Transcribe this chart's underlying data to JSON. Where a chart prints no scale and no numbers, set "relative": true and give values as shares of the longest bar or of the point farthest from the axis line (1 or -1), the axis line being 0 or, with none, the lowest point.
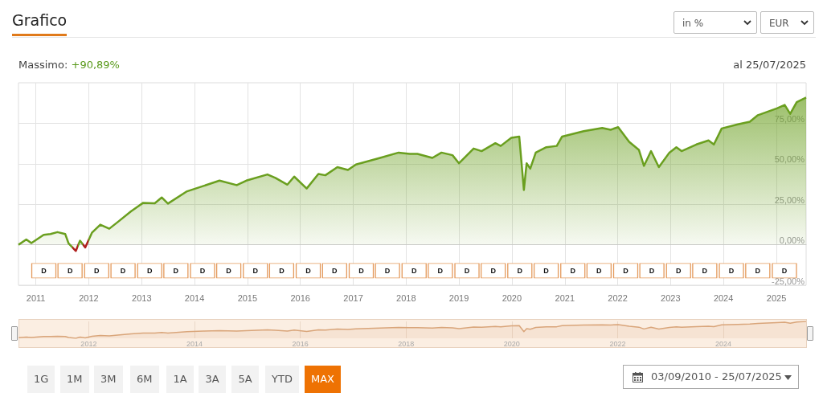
{
  "chart_data": [
    {
      "type": "area",
      "title": "Grafico",
      "x": [
        "2010-09-03",
        "2010-10-27",
        "2010-12-01",
        "2011-02-24",
        "2011-04-12",
        "2011-05-30",
        "2011-07-23",
        "2011-08-15",
        "2011-10-04",
        "2011-11-02",
        "2011-12-08",
        "2012-01-23",
        "2012-03-21",
        "2012-05-22",
        "2012-07-19",
        "2012-10-19",
        "2013-01-11",
        "2013-04-01",
        "2013-05-19",
        "2013-07-01",
        "2013-11-10",
        "2014-03-04",
        "2014-06-22",
        "2014-10-19",
        "2014-12-24",
        "2015-05-19",
        "2015-07-13",
        "2015-10-04",
        "2015-11-20",
        "2016-02-14",
        "2016-05-05",
        "2016-06-22",
        "2016-09-13",
        "2016-11-25",
        "2017-01-19",
        "2017-07-05",
        "2017-11-10",
        "2018-01-26",
        "2018-03-20",
        "2018-07-01",
        "2018-09-02",
        "2018-11-17",
        "2019-01-01",
        "2019-04-12",
        "2019-06-06",
        "2019-09-09",
        "2019-10-16",
        "2019-12-28",
        "2020-02-21",
        "2020-03-24",
        "2020-04-12",
        "2020-05-07",
        "2020-06-14",
        "2020-08-26",
        "2020-11-06",
        "2020-12-13",
        "2021-05-11",
        "2021-09-16",
        "2021-11-13",
        "2022-01-04",
        "2022-03-21",
        "2022-05-27",
        "2022-07-01",
        "2022-08-19",
        "2022-10-12",
        "2022-12-24",
        "2023-02-10",
        "2023-03-18",
        "2023-06-28",
        "2023-09-20",
        "2023-10-27",
        "2023-12-20",
        "2024-04-09",
        "2024-07-01",
        "2024-08-26",
        "2025-01-04",
        "2025-02-27",
        "2025-04-06",
        "2025-05-21",
        "2025-07-25"
      ],
      "series": [
        {
          "color": "#6a9f1f",
          "values": [
            0,
            3.3,
            1,
            6.1,
            6.6,
            7.8,
            6.6,
            0.8,
            -3.8,
            2.5,
            -1.7,
            7.4,
            12.4,
            9.9,
            14,
            20.6,
            25.9,
            25.6,
            29.2,
            25.4,
            33,
            36.3,
            39.6,
            36.8,
            39.6,
            43.4,
            41.3,
            37.1,
            42.1,
            34.7,
            43.7,
            42.9,
            47.9,
            46.2,
            49.5,
            53.6,
            56.9,
            56.1,
            56.1,
            53.6,
            56.9,
            55.3,
            50.3,
            59.4,
            57.8,
            62.7,
            61,
            66,
            66.8,
            33.8,
            50.3,
            47,
            56.9,
            60.2,
            61,
            66.8,
            70.1,
            72.1,
            71,
            72.6,
            63.5,
            58.6,
            48.7,
            57.8,
            47.9,
            56.9,
            60.2,
            57.8,
            61.9,
            64.4,
            61.9,
            71.8,
            74.3,
            75.9,
            80,
            84.2,
            86.3,
            80.8,
            88,
            90.9
          ],
          "colors": [
            "#6a9f1f",
            "#6a9f1f",
            "#6a9f1f",
            "#6a9f1f",
            "#6a9f1f",
            "#6a9f1f",
            "#6a9f1f",
            "#6a9f1f",
            "#b0201e",
            "#6a9f1f",
            "#b0201e",
            "#6a9f1f",
            "#6a9f1f",
            "#6a9f1f",
            "#6a9f1f",
            "#6a9f1f",
            "#6a9f1f",
            "#6a9f1f",
            "#6a9f1f",
            "#6a9f1f",
            "#6a9f1f",
            "#6a9f1f",
            "#6a9f1f",
            "#6a9f1f",
            "#6a9f1f",
            "#6a9f1f",
            "#6a9f1f",
            "#6a9f1f",
            "#6a9f1f",
            "#6a9f1f",
            "#6a9f1f",
            "#6a9f1f",
            "#6a9f1f",
            "#6a9f1f",
            "#6a9f1f",
            "#6a9f1f",
            "#6a9f1f",
            "#6a9f1f",
            "#6a9f1f",
            "#6a9f1f",
            "#6a9f1f",
            "#6a9f1f",
            "#6a9f1f",
            "#6a9f1f",
            "#6a9f1f",
            "#6a9f1f",
            "#6a9f1f",
            "#6a9f1f",
            "#6a9f1f",
            "#6a9f1f",
            "#6a9f1f",
            "#6a9f1f",
            "#6a9f1f",
            "#6a9f1f",
            "#6a9f1f",
            "#6a9f1f",
            "#6a9f1f",
            "#6a9f1f",
            "#6a9f1f",
            "#6a9f1f",
            "#6a9f1f",
            "#6a9f1f",
            "#6a9f1f",
            "#6a9f1f",
            "#6a9f1f",
            "#6a9f1f",
            "#6a9f1f",
            "#6a9f1f",
            "#6a9f1f",
            "#6a9f1f",
            "#6a9f1f",
            "#6a9f1f",
            "#6a9f1f",
            "#6a9f1f",
            "#6a9f1f",
            "#6a9f1f",
            "#6a9f1f",
            "#6a9f1f",
            "#6a9f1f",
            "#6a9f1f"
          ]
        }
      ],
      "xlim": [
        "2010-09-03",
        "2025-07-25"
      ],
      "xticks": [
        "2011",
        "2012",
        "2013",
        "2014",
        "2015",
        "2016",
        "2017",
        "2018",
        "2019",
        "2020",
        "2021",
        "2022",
        "2023",
        "2024",
        "2025"
      ],
      "ylim": [
        -25,
        100
      ],
      "yticks": [
        {
          "value": -25,
          "label": "-25,00%"
        },
        {
          "value": 0,
          "label": "0,00%"
        },
        {
          "value": 25,
          "label": "25,00%"
        },
        {
          "value": 50,
          "label": "50,00%"
        },
        {
          "value": 75,
          "label": "75,00%"
        }
      ],
      "grid": true,
      "marker": "none",
      "line_style": "solid",
      "annotations": [
        "Massimo: +90,89%",
        "al 25/07/2025",
        "in %",
        "EUR",
        "1G",
        "1M",
        "3M",
        "6M",
        "1A",
        "3A",
        "5A",
        "YTD",
        "MAX",
        "03/09/2010 - 25/07/2025",
        {
          "text": "D",
          "x": "2011-02-25",
          "y": -16
        },
        {
          "text": "D",
          "x": "2011-08-25",
          "y": -16
        },
        {
          "text": "D",
          "x": "2012-02-25",
          "y": -16
        },
        {
          "text": "D",
          "x": "2012-08-25",
          "y": -16
        },
        {
          "text": "D",
          "x": "2013-02-25",
          "y": -16
        },
        {
          "text": "D",
          "x": "2013-08-25",
          "y": -16
        },
        {
          "text": "D",
          "x": "2014-02-25",
          "y": -16
        },
        {
          "text": "D",
          "x": "2014-08-25",
          "y": -16
        },
        {
          "text": "D",
          "x": "2015-02-25",
          "y": -16
        },
        {
          "text": "D",
          "x": "2015-08-25",
          "y": -16
        },
        {
          "text": "D",
          "x": "2016-02-25",
          "y": -16
        },
        {
          "text": "D",
          "x": "2016-08-25",
          "y": -16
        },
        {
          "text": "D",
          "x": "2017-02-25",
          "y": -16
        },
        {
          "text": "D",
          "x": "2017-08-25",
          "y": -16
        },
        {
          "text": "D",
          "x": "2018-02-25",
          "y": -16
        },
        {
          "text": "D",
          "x": "2018-08-25",
          "y": -16
        },
        {
          "text": "D",
          "x": "2019-02-25",
          "y": -16
        },
        {
          "text": "D",
          "x": "2019-08-25",
          "y": -16
        },
        {
          "text": "D",
          "x": "2020-02-25",
          "y": -16
        },
        {
          "text": "D",
          "x": "2020-08-25",
          "y": -16
        },
        {
          "text": "D",
          "x": "2021-02-25",
          "y": -16
        },
        {
          "text": "D",
          "x": "2021-08-25",
          "y": -16
        },
        {
          "text": "D",
          "x": "2022-02-25",
          "y": -16
        },
        {
          "text": "D",
          "x": "2022-08-25",
          "y": -16
        },
        {
          "text": "D",
          "x": "2023-02-25",
          "y": -16
        },
        {
          "text": "D",
          "x": "2023-08-25",
          "y": -16
        },
        {
          "text": "D",
          "x": "2024-02-25",
          "y": -16
        },
        {
          "text": "D",
          "x": "2024-08-25",
          "y": -16
        },
        {
          "text": "D",
          "x": "2025-02-25",
          "y": -16
        }
      ]
    },
    {
      "type": "area",
      "relative": true,
      "x": [
        "2010-09-03",
        "2010-10-27",
        "2010-12-01",
        "2011-02-24",
        "2011-04-12",
        "2011-05-30",
        "2011-07-23",
        "2011-08-15",
        "2011-10-04",
        "2011-11-02",
        "2011-12-08",
        "2012-01-23",
        "2012-03-21",
        "2012-05-22",
        "2012-07-19",
        "2012-10-19",
        "2013-01-11",
        "2013-04-01",
        "2013-05-19",
        "2013-07-01",
        "2013-11-10",
        "2014-03-04",
        "2014-06-22",
        "2014-10-19",
        "2014-12-24",
        "2015-05-19",
        "2015-07-13",
        "2015-10-04",
        "2015-11-20",
        "2016-02-14",
        "2016-05-05",
        "2016-06-22",
        "2016-09-13",
        "2016-11-25",
        "2017-01-19",
        "2017-07-05",
        "2017-11-10",
        "2018-01-26",
        "2018-03-20",
        "2018-07-01",
        "2018-09-02",
        "2018-11-17",
        "2019-01-01",
        "2019-04-12",
        "2019-06-06",
        "2019-09-09",
        "2019-10-16",
        "2019-12-28",
        "2020-02-21",
        "2020-03-24",
        "2020-04-12",
        "2020-05-07",
        "2020-06-14",
        "2020-08-26",
        "2020-11-06",
        "2020-12-13",
        "2021-05-11",
        "2021-09-16",
        "2021-11-13",
        "2022-01-04",
        "2022-03-21",
        "2022-05-27",
        "2022-07-01",
        "2022-08-19",
        "2022-10-12",
        "2022-12-24",
        "2023-02-10",
        "2023-03-18",
        "2023-06-28",
        "2023-09-20",
        "2023-10-27",
        "2023-12-20",
        "2024-04-09",
        "2024-07-01",
        "2024-08-26",
        "2025-01-04",
        "2025-02-27",
        "2025-04-06",
        "2025-05-21",
        "2025-07-25"
      ],
      "series": [
        {
          "color": "#d9a57a",
          "values": [
            0.04,
            0.075,
            0.051,
            0.105,
            0.11,
            0.122,
            0.11,
            0.049,
            0,
            0.067,
            0.022,
            0.118,
            0.171,
            0.145,
            0.188,
            0.258,
            0.314,
            0.31,
            0.348,
            0.308,
            0.389,
            0.423,
            0.458,
            0.429,
            0.458,
            0.498,
            0.476,
            0.432,
            0.485,
            0.407,
            0.502,
            0.493,
            0.546,
            0.528,
            0.563,
            0.606,
            0.641,
            0.632,
            0.632,
            0.606,
            0.641,
            0.624,
            0.571,
            0.667,
            0.65,
            0.702,
            0.684,
            0.737,
            0.746,
            0.397,
            0.571,
            0.536,
            0.641,
            0.676,
            0.684,
            0.746,
            0.781,
            0.801,
            0.79,
            0.807,
            0.711,
            0.659,
            0.554,
            0.65,
            0.546,
            0.641,
            0.676,
            0.65,
            0.694,
            0.72,
            0.694,
            0.798,
            0.825,
            0.842,
            0.885,
            0.929,
            0.951,
            0.893,
            0.969,
            1
          ]
        }
      ],
      "xlim": [
        "2010-09-03",
        "2025-07-25"
      ],
      "xticks": [
        "2012",
        "2014",
        "2016",
        "2018",
        "2020",
        "2022",
        "2024"
      ],
      "grid": "x",
      "tick_labels": "x"
    }
  ]
}
